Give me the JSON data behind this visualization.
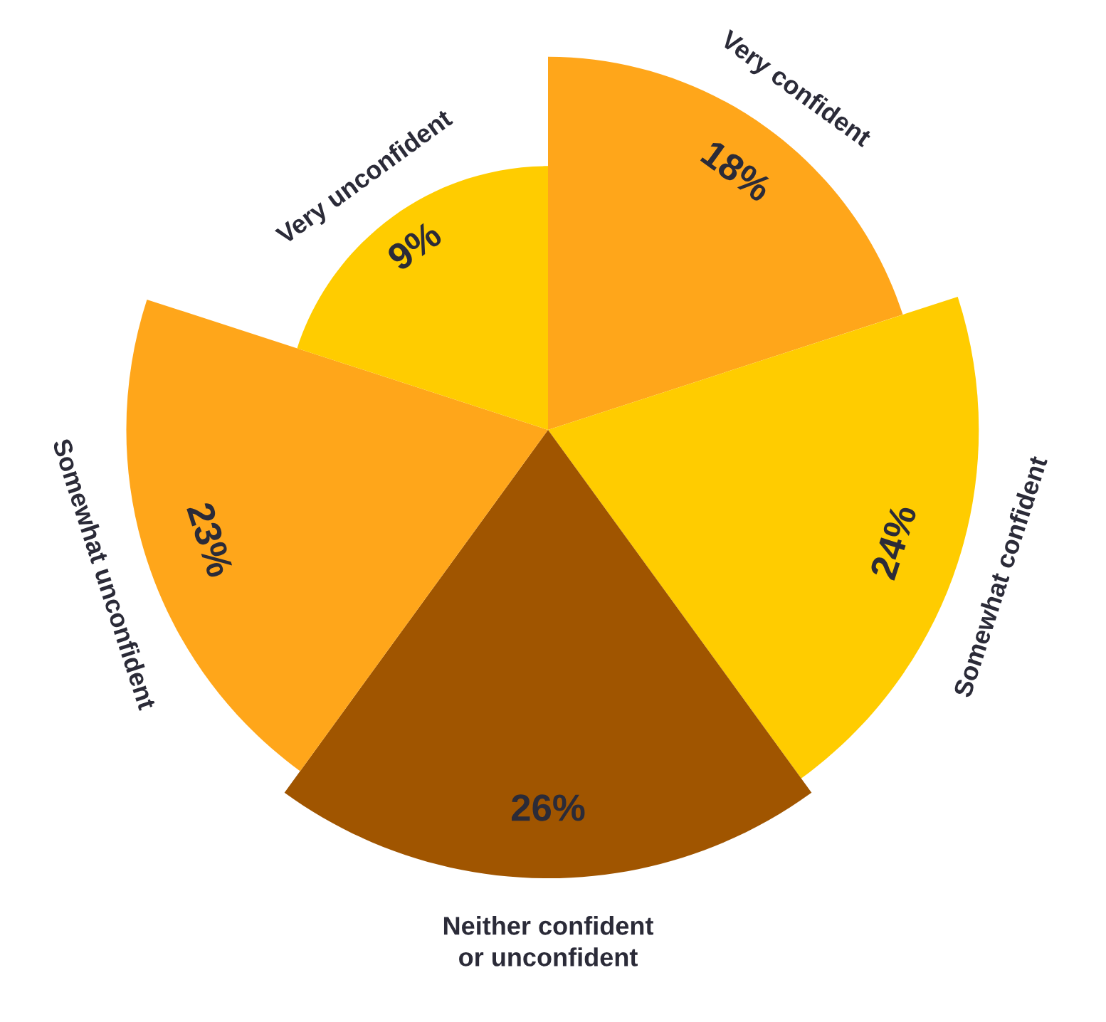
{
  "chart_data": {
    "type": "other",
    "categories": [
      "Very confident",
      "Somewhat confident",
      "Neither confident\nor unconfident",
      "Somewhat unconfident",
      "Very unconfident"
    ],
    "values": [
      18,
      24,
      26,
      23,
      9
    ],
    "colors": [
      "#ffa61a",
      "#ffcc00",
      "#a05500",
      "#ffa61a",
      "#ffcc00"
    ],
    "value_labels": [
      "18%",
      "24%",
      "26%",
      "23%",
      "9%"
    ],
    "legend": false
  }
}
